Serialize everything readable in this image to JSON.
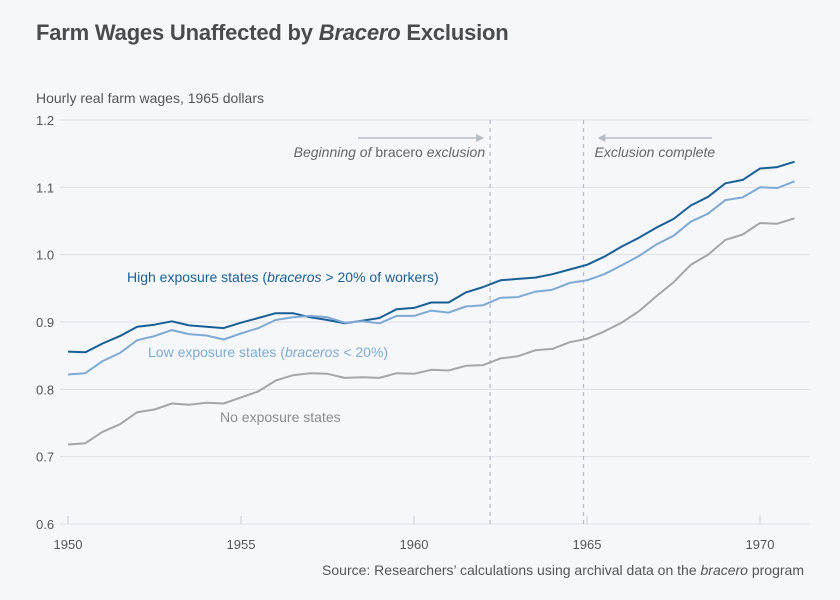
{
  "chart_data": {
    "type": "line",
    "title_parts": [
      "Farm Wages Unaffected by ",
      "Bracero",
      " Exclusion"
    ],
    "ylabel": "Hourly real farm wages, 1965 dollars",
    "xlabel": "",
    "xlim": [
      1950,
      1971
    ],
    "ylim": [
      0.6,
      1.2
    ],
    "xticks": [
      1950,
      1955,
      1960,
      1965,
      1970
    ],
    "yticks": [
      0.6,
      0.7,
      0.8,
      0.9,
      1.0,
      1.1,
      1.2
    ],
    "ytick_labels": [
      "0.6",
      "0.7",
      "0.8",
      "0.9",
      "1.0",
      "1.1",
      "1.2"
    ],
    "grid": "horizontal",
    "x": [
      1950.0,
      1950.5,
      1951.0,
      1951.5,
      1952.0,
      1952.5,
      1953.0,
      1953.5,
      1954.0,
      1954.5,
      1955.0,
      1955.5,
      1956.0,
      1956.5,
      1957.0,
      1957.5,
      1958.0,
      1958.5,
      1959.0,
      1959.5,
      1960.0,
      1960.5,
      1961.0,
      1961.5,
      1962.0,
      1962.5,
      1963.0,
      1963.5,
      1964.0,
      1964.5,
      1965.0,
      1965.5,
      1966.0,
      1966.5,
      1967.0,
      1967.5,
      1968.0,
      1968.5,
      1969.0,
      1969.5,
      1970.0,
      1970.5,
      1971.0
    ],
    "series": [
      {
        "name": "High exposure states (braceros > 20% of workers)",
        "label_parts": [
          "High exposure states (",
          "braceros",
          " > 20% of workers)"
        ],
        "color": "#1a5e96",
        "values": [
          0.856,
          0.855,
          0.868,
          0.879,
          0.893,
          0.896,
          0.901,
          0.895,
          0.893,
          0.891,
          0.899,
          0.906,
          0.913,
          0.913,
          0.907,
          0.903,
          0.898,
          0.902,
          0.906,
          0.919,
          0.921,
          0.929,
          0.929,
          0.944,
          0.952,
          0.962,
          0.964,
          0.966,
          0.971,
          0.978,
          0.985,
          0.997,
          1.012,
          1.025,
          1.04,
          1.053,
          1.073,
          1.086,
          1.106,
          1.111,
          1.128,
          1.13,
          1.138
        ]
      },
      {
        "name": "Low exposure states (braceros < 20%)",
        "label_parts": [
          "Low exposure states (",
          "braceros",
          " < 20%)"
        ],
        "color": "#7fa9d3",
        "values": [
          0.822,
          0.824,
          0.842,
          0.854,
          0.873,
          0.879,
          0.888,
          0.882,
          0.88,
          0.874,
          0.883,
          0.891,
          0.903,
          0.907,
          0.909,
          0.907,
          0.899,
          0.901,
          0.898,
          0.909,
          0.909,
          0.917,
          0.914,
          0.923,
          0.925,
          0.936,
          0.937,
          0.945,
          0.948,
          0.958,
          0.962,
          0.971,
          0.984,
          0.998,
          1.015,
          1.028,
          1.049,
          1.061,
          1.081,
          1.085,
          1.1,
          1.099,
          1.109
        ]
      },
      {
        "name": "No exposure states",
        "label_parts": [
          "No exposure states"
        ],
        "color": "#a6a6aa",
        "values": [
          0.718,
          0.72,
          0.737,
          0.748,
          0.766,
          0.77,
          0.779,
          0.777,
          0.78,
          0.779,
          0.788,
          0.797,
          0.813,
          0.821,
          0.824,
          0.823,
          0.817,
          0.818,
          0.817,
          0.824,
          0.823,
          0.829,
          0.828,
          0.835,
          0.836,
          0.846,
          0.849,
          0.858,
          0.86,
          0.87,
          0.875,
          0.886,
          0.899,
          0.916,
          0.938,
          0.959,
          0.985,
          1.0,
          1.022,
          1.03,
          1.047,
          1.046,
          1.054
        ]
      }
    ],
    "annotations": [
      {
        "text_parts": [
          "Beginning of ",
          "bracero",
          " exclusion"
        ],
        "x": 1962.2,
        "arrow": "right"
      },
      {
        "text_parts": [
          "Exclusion complete"
        ],
        "x": 1964.9,
        "arrow": "left"
      }
    ],
    "source_parts": [
      "Source: Researchers’ calculations using archival data on the ",
      "bracero",
      " program"
    ]
  }
}
